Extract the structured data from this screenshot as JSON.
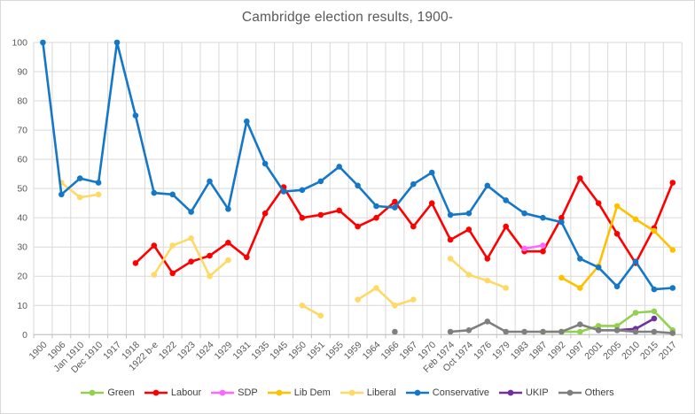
{
  "window": {
    "background": "#ffffff",
    "border_color": "#d9d9d9"
  },
  "chart_data": {
    "type": "line",
    "title": "Cambridge election results, 1900-",
    "xlabel": "",
    "ylabel": "",
    "ylim": [
      0,
      100
    ],
    "grid": true,
    "legend_position": "bottom",
    "categories": [
      "1900",
      "1906",
      "Jan 1910",
      "Dec 1910",
      "1917",
      "1918",
      "1922 b-e",
      "1922",
      "1923",
      "1924",
      "1929",
      "1931",
      "1935",
      "1945",
      "1950",
      "1951",
      "1955",
      "1959",
      "1964",
      "1966",
      "1967",
      "1970",
      "Feb 1974",
      "Oct 1974",
      "1976",
      "1979",
      "1983",
      "1987",
      "1992",
      "1997",
      "2001",
      "2005",
      "2010",
      "2015",
      "2017"
    ],
    "y_axis": {
      "min": 0,
      "max": 100,
      "step": 10,
      "tick_labels": [
        "0",
        "10",
        "20",
        "30",
        "40",
        "50",
        "60",
        "70",
        "80",
        "90",
        "100"
      ]
    },
    "series": [
      {
        "name": "Green",
        "color": "#92D050",
        "values": [
          null,
          null,
          null,
          null,
          null,
          null,
          null,
          null,
          null,
          null,
          null,
          null,
          null,
          null,
          null,
          null,
          null,
          null,
          null,
          null,
          null,
          null,
          null,
          null,
          null,
          null,
          null,
          1,
          1,
          1,
          3,
          3,
          7.5,
          8,
          1.5
        ]
      },
      {
        "name": "Labour",
        "color": "#FE0000",
        "values": [
          null,
          null,
          null,
          null,
          null,
          24.5,
          30.5,
          21,
          25,
          27,
          31.5,
          26.5,
          41.5,
          50.5,
          40,
          41,
          42.5,
          37,
          40,
          45.5,
          37,
          45,
          32.5,
          36,
          26,
          37,
          28.5,
          28.5,
          40,
          53.5,
          45,
          34.5,
          24.5,
          36.5,
          52
        ]
      },
      {
        "name": "SDP",
        "color": "#FF66FF",
        "values": [
          null,
          null,
          null,
          null,
          null,
          null,
          null,
          null,
          null,
          null,
          null,
          null,
          null,
          null,
          null,
          null,
          null,
          null,
          null,
          null,
          null,
          null,
          null,
          null,
          null,
          null,
          29.5,
          30.5,
          null,
          null,
          null,
          null,
          null,
          null,
          null
        ]
      },
      {
        "name": "Lib Dem",
        "color": "#FFC000",
        "values": [
          null,
          null,
          null,
          null,
          null,
          null,
          null,
          null,
          null,
          null,
          null,
          null,
          null,
          null,
          null,
          null,
          null,
          null,
          null,
          null,
          null,
          null,
          null,
          null,
          null,
          null,
          null,
          null,
          19.5,
          16,
          23.5,
          44,
          39.5,
          35.5,
          29
        ]
      },
      {
        "name": "Liberal",
        "color": "#FFD966",
        "values": [
          null,
          52,
          47,
          48,
          null,
          null,
          20.5,
          30.5,
          33,
          20,
          25.5,
          null,
          null,
          null,
          10,
          6.5,
          null,
          12,
          16,
          10,
          12,
          null,
          26,
          20.5,
          18.5,
          16,
          null,
          null,
          null,
          null,
          null,
          null,
          null,
          null,
          null
        ]
      },
      {
        "name": "Conservative",
        "color": "#1577C8",
        "values": [
          100,
          48,
          53.5,
          52,
          100,
          75,
          48.5,
          48,
          42,
          52.5,
          43,
          73,
          58.5,
          49,
          49.5,
          52.5,
          57.5,
          51,
          44,
          43.5,
          51.5,
          55.5,
          41,
          41.5,
          51,
          46,
          41.5,
          40,
          38.5,
          26,
          23,
          16.5,
          25,
          15.5,
          16
        ]
      },
      {
        "name": "UKIP",
        "color": "#7030A0",
        "values": [
          null,
          null,
          null,
          null,
          null,
          null,
          null,
          null,
          null,
          null,
          null,
          null,
          null,
          null,
          null,
          null,
          null,
          null,
          null,
          null,
          null,
          null,
          null,
          null,
          null,
          null,
          null,
          null,
          null,
          null,
          1.5,
          1.5,
          2,
          5.5,
          null
        ]
      },
      {
        "name": "Others",
        "color": "#7F7F7F",
        "values": [
          null,
          null,
          null,
          null,
          null,
          null,
          null,
          null,
          null,
          null,
          null,
          null,
          null,
          null,
          null,
          null,
          null,
          null,
          null,
          1,
          null,
          null,
          1,
          1.5,
          4.5,
          1,
          1,
          1,
          1,
          3.5,
          1.5,
          1.5,
          1,
          1,
          0.5
        ]
      }
    ]
  },
  "styles": {
    "grid_color": "#D9D9D9",
    "axis_color": "#BFBFBF",
    "tick_text_color": "#595959",
    "legend_text_color": "#404040",
    "title_color": "#595959"
  }
}
